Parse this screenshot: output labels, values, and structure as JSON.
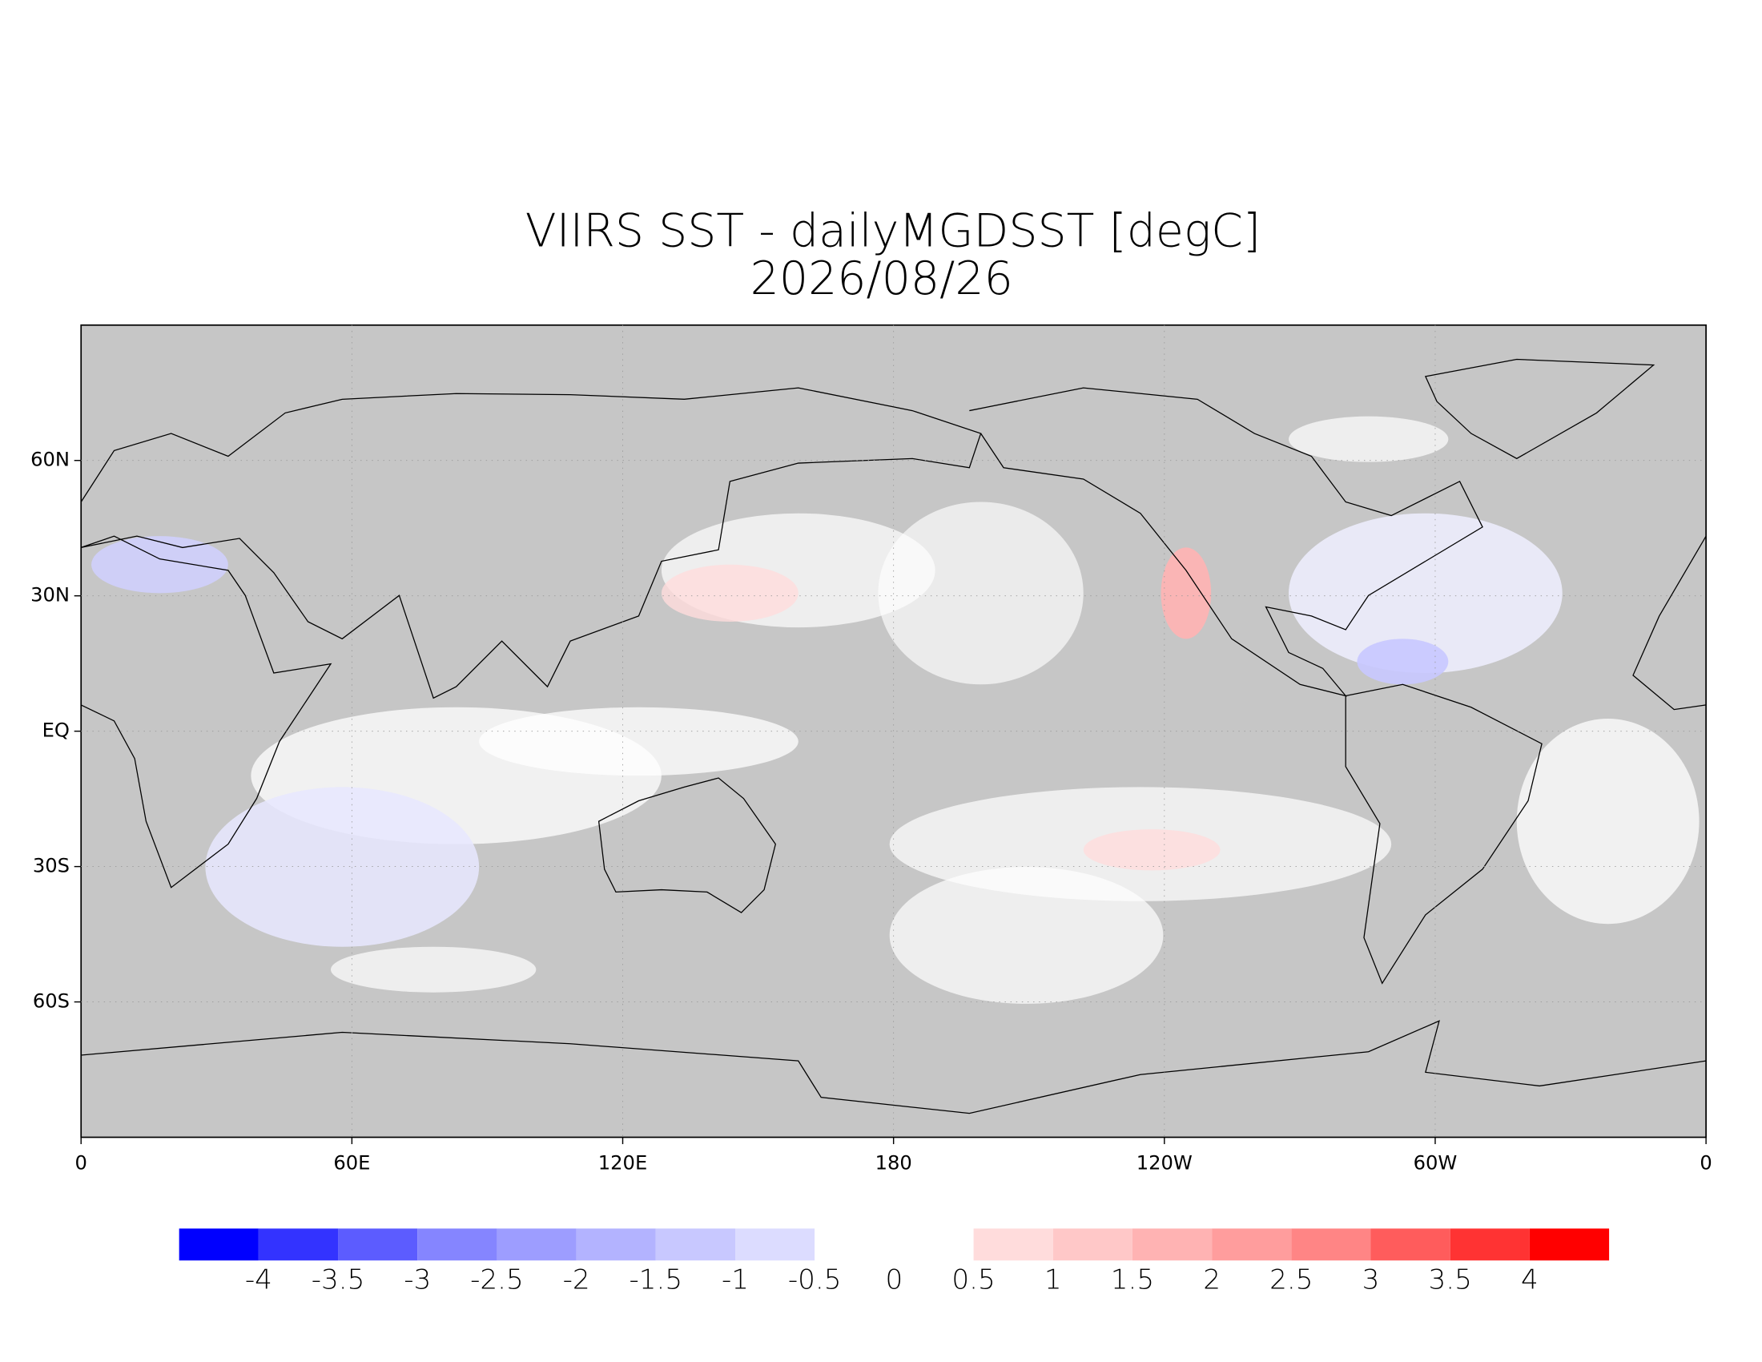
{
  "chart_data": {
    "type": "map",
    "title": "VIIRS SST - dailyMGDSST [degC]",
    "subtitle": "2026/08/26",
    "xlim": [
      0,
      360
    ],
    "xticks": [
      0,
      {
        "value": 60,
        "label": "60E"
      },
      {
        "value": 120,
        "label": "120E"
      },
      180,
      {
        "value": 240,
        "label": "120W"
      },
      {
        "value": 300,
        "label": "60W"
      },
      {
        "value": 360,
        "label": "0"
      }
    ],
    "ylim": [
      -90,
      90
    ],
    "yticks": [
      {
        "value": -60,
        "label": "60S"
      },
      {
        "value": -30,
        "label": "30S"
      },
      {
        "value": 0,
        "label": "EQ"
      },
      {
        "value": 30,
        "label": "30N"
      },
      {
        "value": 60,
        "label": "60N"
      }
    ],
    "grid": true,
    "colorbar": {
      "bounds": [
        -4,
        -3.5,
        -3,
        -2.5,
        -2,
        -1.5,
        -1,
        -0.5,
        0.5,
        1,
        1.5,
        2,
        2.5,
        3,
        3.5,
        4
      ],
      "colors": [
        "#0000ff",
        "#3333ff",
        "#5c5cff",
        "#8585ff",
        "#9d9dff",
        "#b3b3ff",
        "#c8c8ff",
        "#dcdcff",
        "#ffffff",
        "#ffdcdc",
        "#ffc8c8",
        "#ffb3b3",
        "#ff9d9d",
        "#ff8585",
        "#ff5c5c",
        "#ff3333",
        "#ff0000"
      ],
      "ticks": [
        -4,
        -3.5,
        -3,
        -2.5,
        -2,
        -1.5,
        -1,
        -0.5,
        0,
        0.5,
        1,
        1.5,
        2,
        2.5,
        3,
        3.5,
        4
      ]
    }
  }
}
